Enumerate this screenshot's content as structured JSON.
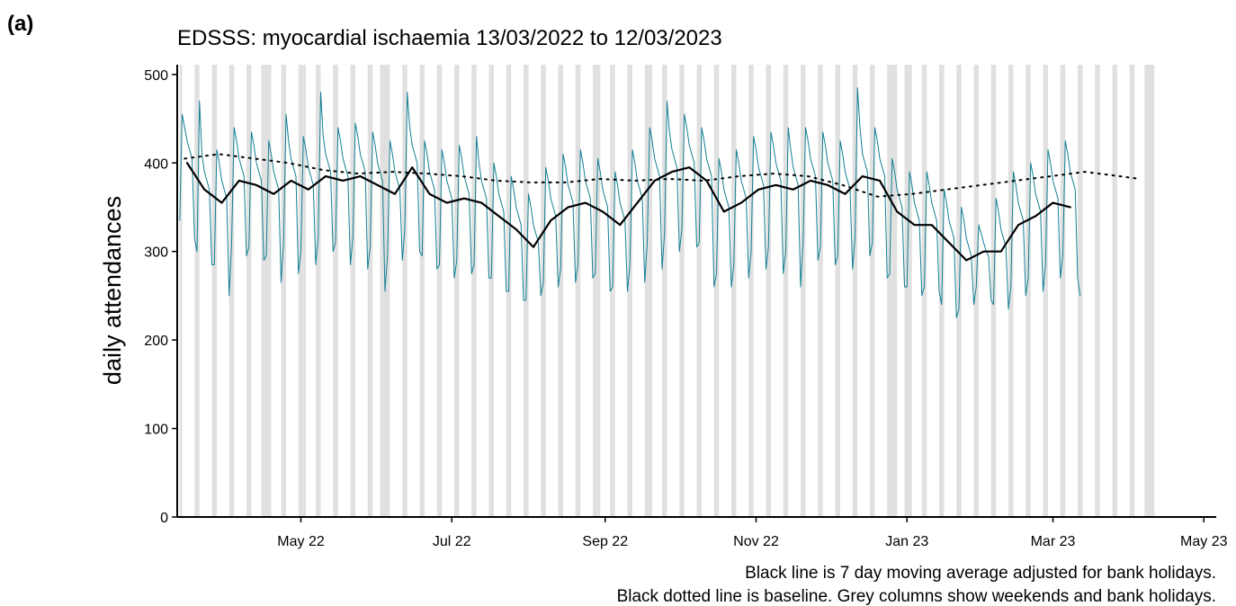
{
  "panel_label": "(a)",
  "chart_data": {
    "type": "line",
    "title": "EDSSS: myocardial ischaemia 13/03/2022 to 12/03/2023",
    "ylabel": "daily attendances",
    "notes": [
      "Black line is 7 day moving average adjusted for bank holidays.",
      "Black dotted line is baseline. Grey columns show weekends and bank holidays."
    ],
    "xlim": [
      -1,
      419
    ],
    "xticks": [
      {
        "value": 49,
        "label": "May 22"
      },
      {
        "value": 110,
        "label": "Jul 22"
      },
      {
        "value": 172,
        "label": "Sep 22"
      },
      {
        "value": 233,
        "label": "Nov 22"
      },
      {
        "value": 294,
        "label": "Jan 23"
      },
      {
        "value": 353,
        "label": "Mar 23"
      },
      {
        "value": 414,
        "label": "May 23"
      }
    ],
    "ylim": [
      0,
      511
    ],
    "yticks": [
      0,
      100,
      200,
      300,
      400,
      500
    ],
    "shade_color": "#e0e0e0",
    "shaded_spans": [
      [
        0,
        1
      ],
      [
        6,
        8
      ],
      [
        13,
        15
      ],
      [
        20,
        22
      ],
      [
        27,
        29
      ],
      [
        34,
        36
      ],
      [
        41,
        43
      ],
      [
        48,
        50
      ],
      [
        55,
        57
      ],
      [
        62,
        64
      ],
      [
        69,
        71
      ],
      [
        76,
        78
      ],
      [
        83,
        85
      ],
      [
        90,
        92
      ],
      [
        97,
        99
      ],
      [
        104,
        106
      ],
      [
        111,
        113
      ],
      [
        118,
        120
      ],
      [
        125,
        127
      ],
      [
        132,
        134
      ],
      [
        139,
        141
      ],
      [
        146,
        148
      ],
      [
        153,
        155
      ],
      [
        160,
        162
      ],
      [
        167,
        169
      ],
      [
        174,
        176
      ],
      [
        181,
        183
      ],
      [
        188,
        190
      ],
      [
        195,
        197
      ],
      [
        202,
        204
      ],
      [
        209,
        211
      ],
      [
        216,
        218
      ],
      [
        223,
        225
      ],
      [
        230,
        232
      ],
      [
        237,
        239
      ],
      [
        244,
        246
      ],
      [
        251,
        253
      ],
      [
        258,
        260
      ],
      [
        265,
        267
      ],
      [
        272,
        274
      ],
      [
        279,
        281
      ],
      [
        286,
        288
      ],
      [
        293,
        295
      ],
      [
        300,
        302
      ],
      [
        307,
        309
      ],
      [
        314,
        316
      ],
      [
        321,
        323
      ],
      [
        328,
        330
      ],
      [
        335,
        337
      ],
      [
        342,
        344
      ],
      [
        349,
        351
      ],
      [
        356,
        358
      ],
      [
        363,
        365
      ],
      [
        370,
        372
      ],
      [
        377,
        379
      ],
      [
        384,
        386
      ],
      [
        391,
        393
      ],
      [
        33,
        34
      ],
      [
        36,
        37
      ],
      [
        50,
        51
      ],
      [
        81,
        83
      ],
      [
        169,
        170
      ],
      [
        190,
        191
      ],
      [
        288,
        290
      ],
      [
        295,
        296
      ],
      [
        390,
        391
      ],
      [
        393,
        394
      ]
    ],
    "series": [
      {
        "color": "#137f93",
        "width": 1,
        "values": [
          335,
          455,
          440,
          425,
          415,
          405,
          315,
          300,
          470,
          410,
          390,
          380,
          370,
          285,
          285,
          415,
          400,
          380,
          370,
          360,
          250,
          310,
          440,
          425,
          405,
          395,
          385,
          295,
          305,
          435,
          420,
          400,
          390,
          380,
          290,
          295,
          425,
          410,
          390,
          380,
          370,
          265,
          310,
          455,
          425,
          405,
          395,
          385,
          275,
          300,
          430,
          415,
          395,
          385,
          375,
          285,
          315,
          480,
          430,
          410,
          400,
          390,
          300,
          310,
          440,
          425,
          405,
          395,
          385,
          285,
          315,
          445,
          430,
          410,
          400,
          390,
          280,
          305,
          435,
          420,
          400,
          390,
          380,
          255,
          295,
          425,
          410,
          390,
          380,
          370,
          290,
          325,
          480,
          440,
          420,
          410,
          400,
          300,
          295,
          425,
          410,
          390,
          380,
          370,
          280,
          285,
          415,
          400,
          380,
          370,
          360,
          270,
          290,
          420,
          405,
          385,
          375,
          365,
          275,
          285,
          430,
          400,
          380,
          370,
          360,
          270,
          270,
          400,
          385,
          365,
          355,
          345,
          255,
          255,
          385,
          370,
          350,
          340,
          330,
          245,
          245,
          365,
          350,
          330,
          320,
          310,
          250,
          265,
          395,
          380,
          360,
          350,
          340,
          260,
          280,
          410,
          395,
          375,
          365,
          355,
          265,
          285,
          415,
          400,
          380,
          370,
          360,
          270,
          275,
          405,
          390,
          370,
          360,
          350,
          255,
          260,
          390,
          375,
          355,
          345,
          335,
          255,
          285,
          415,
          400,
          380,
          370,
          360,
          265,
          310,
          440,
          425,
          405,
          395,
          385,
          280,
          320,
          470,
          435,
          415,
          405,
          395,
          300,
          325,
          455,
          440,
          420,
          410,
          400,
          305,
          310,
          440,
          425,
          405,
          395,
          385,
          260,
          275,
          405,
          390,
          370,
          360,
          350,
          260,
          285,
          415,
          400,
          380,
          370,
          360,
          270,
          300,
          430,
          415,
          395,
          385,
          375,
          280,
          305,
          435,
          420,
          400,
          390,
          380,
          275,
          300,
          440,
          415,
          395,
          385,
          375,
          260,
          310,
          440,
          425,
          405,
          395,
          385,
          290,
          305,
          435,
          420,
          400,
          390,
          380,
          285,
          295,
          425,
          410,
          390,
          380,
          370,
          280,
          315,
          485,
          440,
          410,
          400,
          390,
          295,
          310,
          440,
          425,
          405,
          395,
          385,
          270,
          275,
          405,
          390,
          370,
          360,
          350,
          260,
          260,
          390,
          375,
          355,
          345,
          335,
          250,
          260,
          390,
          375,
          355,
          345,
          335,
          255,
          240,
          370,
          355,
          335,
          325,
          315,
          225,
          235,
          350,
          335,
          315,
          305,
          295,
          240,
          260,
          330,
          320,
          310,
          300,
          295,
          245,
          240,
          360,
          345,
          325,
          315,
          305,
          235,
          260,
          390,
          375,
          355,
          345,
          335,
          250,
          270,
          400,
          385,
          365,
          355,
          345,
          255,
          285,
          415,
          400,
          380,
          370,
          360,
          270,
          295,
          425,
          410,
          390,
          380,
          370,
          270,
          250
        ]
      },
      {
        "color": "#000000",
        "width": 2.2,
        "x": [
          3,
          10,
          17,
          24,
          31,
          38,
          45,
          52,
          59,
          66,
          73,
          80,
          87,
          94,
          101,
          108,
          115,
          122,
          129,
          136,
          143,
          150,
          157,
          164,
          171,
          178,
          185,
          192,
          199,
          206,
          213,
          220,
          227,
          234,
          241,
          248,
          255,
          262,
          269,
          276,
          283,
          290,
          297,
          304,
          311,
          318,
          325,
          332,
          339,
          346,
          353,
          360
        ],
        "values": [
          400,
          370,
          355,
          380,
          375,
          365,
          380,
          370,
          385,
          380,
          385,
          375,
          365,
          395,
          365,
          355,
          360,
          355,
          340,
          325,
          305,
          335,
          350,
          355,
          345,
          330,
          355,
          380,
          390,
          395,
          380,
          345,
          355,
          370,
          375,
          370,
          380,
          375,
          365,
          385,
          380,
          345,
          330,
          330,
          310,
          290,
          300,
          300,
          330,
          340,
          355,
          350
        ]
      },
      {
        "color": "#000000",
        "width": 2,
        "dash": "2 6",
        "x": [
          2,
          16,
          30,
          44,
          58,
          72,
          86,
          100,
          114,
          128,
          142,
          156,
          170,
          184,
          198,
          212,
          226,
          240,
          254,
          268,
          282,
          296,
          310,
          324,
          338,
          352,
          366,
          380,
          388
        ],
        "values": [
          405,
          410,
          405,
          400,
          392,
          388,
          390,
          388,
          385,
          380,
          378,
          378,
          382,
          380,
          382,
          380,
          385,
          388,
          385,
          375,
          362,
          365,
          370,
          375,
          380,
          385,
          390,
          385,
          382
        ]
      }
    ]
  }
}
